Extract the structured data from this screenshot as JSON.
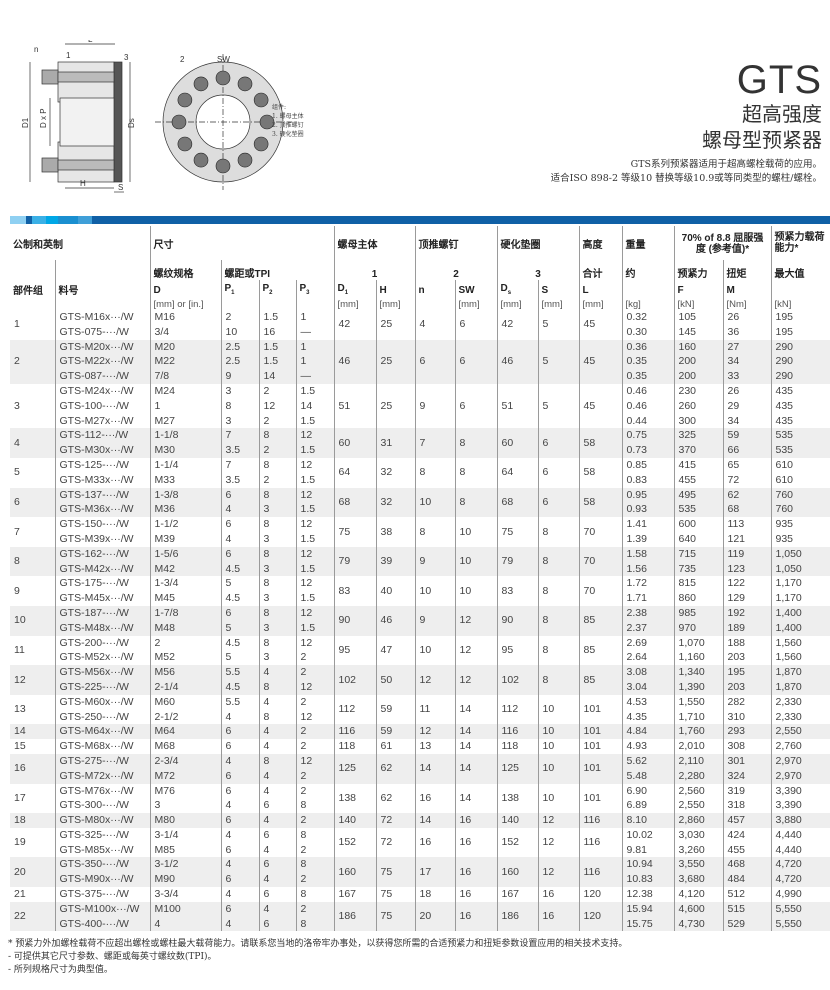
{
  "diagram": {
    "labels": {
      "n": "n",
      "L": "L",
      "part1": "1",
      "part3": "3",
      "D1": "D1",
      "DxP": "D x P",
      "Ds": "Ds",
      "H": "H",
      "S": "S",
      "part2": "2",
      "SW": "SW"
    },
    "legend_title": "组件:",
    "legend_items": [
      "1.  螺母主体",
      "2.  顶推螺钉",
      "3.  硬化垫圈"
    ]
  },
  "title": {
    "product": "GTS",
    "line1": "超高强度",
    "line2": "螺母型预紧器",
    "desc1": "GTS系列预紧器适用于超高螺栓载荷的应用。",
    "desc2": "适合ISO 898-2 等级10 替换等级10.9或等同类型的螺柱/螺栓。"
  },
  "colors": {
    "accent_bar": "#1060a6",
    "bar_segments": [
      "#8fd0f2",
      "#3ab0e6",
      "#00a7e6",
      "#1a8fd0",
      "#3f9fd8"
    ],
    "stripe": "#eeeeee"
  },
  "header": {
    "metric_imperial": "公制和英制",
    "dimensions": "尺寸",
    "nut_body": "螺母主体",
    "jack_bolt": "顶推螺钉",
    "washer": "硬化垫圈",
    "height": "高度",
    "weight": "重量",
    "yield": "70% of 8.8 屈服强度 (参考值)*",
    "load_capacity": "预紧力载荷能力*",
    "thread_spec": "螺纹规格",
    "pitch_tpi": "螺距或TPI",
    "num1": "1",
    "num2": "2",
    "num3": "3",
    "total": "合计",
    "approx": "约",
    "preload": "预紧力",
    "torque": "扭矩",
    "max": "最大值",
    "group": "部件组",
    "part_no": "料号",
    "D": "D",
    "P1": "P",
    "P2": "P",
    "P3": "P",
    "D1": "D",
    "H": "H",
    "n": "n",
    "SW": "SW",
    "Ds": "D",
    "S": "S",
    "L": "L",
    "F": "F",
    "M": "M",
    "P1_sub": "1",
    "P2_sub": "2",
    "P3_sub": "3",
    "D1_sub": "1",
    "Ds_sub": "s",
    "unit_D": "[mm] or [in.]",
    "unit_mm": "[mm]",
    "unit_kg": "[kg]",
    "unit_kN": "[kN]",
    "unit_Nm": "[Nm]"
  },
  "table": {
    "groups": [
      {
        "id": "1",
        "D1": "42",
        "H": "25",
        "n": "4",
        "SW": "6",
        "Ds": "42",
        "S": "5",
        "L": "45",
        "items": [
          {
            "part": "GTS-M16x···/W",
            "D": "M16",
            "P1": "2",
            "P2": "1.5",
            "P3": "1",
            "kg": "0.32",
            "F": "105",
            "M": "26",
            "max": "195"
          },
          {
            "part": "GTS-075-···/W",
            "D": "3/4",
            "P1": "10",
            "P2": "16",
            "P3": "—",
            "kg": "0.30",
            "F": "145",
            "M": "36",
            "max": "195"
          }
        ]
      },
      {
        "id": "2",
        "D1": "46",
        "H": "25",
        "n": "6",
        "SW": "6",
        "Ds": "46",
        "S": "5",
        "L": "45",
        "items": [
          {
            "part": "GTS-M20x···/W",
            "D": "M20",
            "P1": "2.5",
            "P2": "1.5",
            "P3": "1",
            "kg": "0.36",
            "F": "160",
            "M": "27",
            "max": "290"
          },
          {
            "part": "GTS-M22x···/W",
            "D": "M22",
            "P1": "2.5",
            "P2": "1.5",
            "P3": "1",
            "kg": "0.35",
            "F": "200",
            "M": "34",
            "max": "290"
          },
          {
            "part": "GTS-087-···/W",
            "D": "7/8",
            "P1": "9",
            "P2": "14",
            "P3": "—",
            "kg": "0.35",
            "F": "200",
            "M": "33",
            "max": "290"
          }
        ]
      },
      {
        "id": "3",
        "D1": "51",
        "H": "25",
        "n": "9",
        "SW": "6",
        "Ds": "51",
        "S": "5",
        "L": "45",
        "items": [
          {
            "part": "GTS-M24x···/W",
            "D": "M24",
            "P1": "3",
            "P2": "2",
            "P3": "1.5",
            "kg": "0.46",
            "F": "230",
            "M": "26",
            "max": "435"
          },
          {
            "part": "GTS-100-···/W",
            "D": "1",
            "P1": "8",
            "P2": "12",
            "P3": "14",
            "kg": "0.46",
            "F": "260",
            "M": "29",
            "max": "435"
          },
          {
            "part": "GTS-M27x···/W",
            "D": "M27",
            "P1": "3",
            "P2": "2",
            "P3": "1.5",
            "kg": "0.44",
            "F": "300",
            "M": "34",
            "max": "435"
          }
        ]
      },
      {
        "id": "4",
        "D1": "60",
        "H": "31",
        "n": "7",
        "SW": "8",
        "Ds": "60",
        "S": "6",
        "L": "58",
        "items": [
          {
            "part": "GTS-112-···/W",
            "D": "1-1/8",
            "P1": "7",
            "P2": "8",
            "P3": "12",
            "kg": "0.75",
            "F": "325",
            "M": "59",
            "max": "535"
          },
          {
            "part": "GTS-M30x···/W",
            "D": "M30",
            "P1": "3.5",
            "P2": "2",
            "P3": "1.5",
            "kg": "0.73",
            "F": "370",
            "M": "66",
            "max": "535"
          }
        ]
      },
      {
        "id": "5",
        "D1": "64",
        "H": "32",
        "n": "8",
        "SW": "8",
        "Ds": "64",
        "S": "6",
        "L": "58",
        "items": [
          {
            "part": "GTS-125-···/W",
            "D": "1-1/4",
            "P1": "7",
            "P2": "8",
            "P3": "12",
            "kg": "0.85",
            "F": "415",
            "M": "65",
            "max": "610"
          },
          {
            "part": "GTS-M33x···/W",
            "D": "M33",
            "P1": "3.5",
            "P2": "2",
            "P3": "1.5",
            "kg": "0.83",
            "F": "455",
            "M": "72",
            "max": "610"
          }
        ]
      },
      {
        "id": "6",
        "D1": "68",
        "H": "32",
        "n": "10",
        "SW": "8",
        "Ds": "68",
        "S": "6",
        "L": "58",
        "items": [
          {
            "part": "GTS-137-···/W",
            "D": "1-3/8",
            "P1": "6",
            "P2": "8",
            "P3": "12",
            "kg": "0.95",
            "F": "495",
            "M": "62",
            "max": "760"
          },
          {
            "part": "GTS-M36x···/W",
            "D": "M36",
            "P1": "4",
            "P2": "3",
            "P3": "1.5",
            "kg": "0.93",
            "F": "535",
            "M": "68",
            "max": "760"
          }
        ]
      },
      {
        "id": "7",
        "D1": "75",
        "H": "38",
        "n": "8",
        "SW": "10",
        "Ds": "75",
        "S": "8",
        "L": "70",
        "items": [
          {
            "part": "GTS-150-···/W",
            "D": "1-1/2",
            "P1": "6",
            "P2": "8",
            "P3": "12",
            "kg": "1.41",
            "F": "600",
            "M": "113",
            "max": "935"
          },
          {
            "part": "GTS-M39x···/W",
            "D": "M39",
            "P1": "4",
            "P2": "3",
            "P3": "1.5",
            "kg": "1.39",
            "F": "640",
            "M": "121",
            "max": "935"
          }
        ]
      },
      {
        "id": "8",
        "D1": "79",
        "H": "39",
        "n": "9",
        "SW": "10",
        "Ds": "79",
        "S": "8",
        "L": "70",
        "items": [
          {
            "part": "GTS-162-···/W",
            "D": "1-5/6",
            "P1": "6",
            "P2": "8",
            "P3": "12",
            "kg": "1.58",
            "F": "715",
            "M": "119",
            "max": "1,050"
          },
          {
            "part": "GTS-M42x···/W",
            "D": "M42",
            "P1": "4.5",
            "P2": "3",
            "P3": "1.5",
            "kg": "1.56",
            "F": "735",
            "M": "123",
            "max": "1,050"
          }
        ]
      },
      {
        "id": "9",
        "D1": "83",
        "H": "40",
        "n": "10",
        "SW": "10",
        "Ds": "83",
        "S": "8",
        "L": "70",
        "items": [
          {
            "part": "GTS-175-···/W",
            "D": "1-3/4",
            "P1": "5",
            "P2": "8",
            "P3": "12",
            "kg": "1.72",
            "F": "815",
            "M": "122",
            "max": "1,170"
          },
          {
            "part": "GTS-M45x···/W",
            "D": "M45",
            "P1": "4.5",
            "P2": "3",
            "P3": "1.5",
            "kg": "1.71",
            "F": "860",
            "M": "129",
            "max": "1,170"
          }
        ]
      },
      {
        "id": "10",
        "D1": "90",
        "H": "46",
        "n": "9",
        "SW": "12",
        "Ds": "90",
        "S": "8",
        "L": "85",
        "items": [
          {
            "part": "GTS-187-···/W",
            "D": "1-7/8",
            "P1": "6",
            "P2": "8",
            "P3": "12",
            "kg": "2.38",
            "F": "985",
            "M": "192",
            "max": "1,400"
          },
          {
            "part": "GTS-M48x···/W",
            "D": "M48",
            "P1": "5",
            "P2": "3",
            "P3": "1.5",
            "kg": "2.37",
            "F": "970",
            "M": "189",
            "max": "1,400"
          }
        ]
      },
      {
        "id": "11",
        "D1": "95",
        "H": "47",
        "n": "10",
        "SW": "12",
        "Ds": "95",
        "S": "8",
        "L": "85",
        "items": [
          {
            "part": "GTS-200-···/W",
            "D": "2",
            "P1": "4.5",
            "P2": "8",
            "P3": "12",
            "kg": "2.69",
            "F": "1,070",
            "M": "188",
            "max": "1,560"
          },
          {
            "part": "GTS-M52x···/W",
            "D": "M52",
            "P1": "5",
            "P2": "3",
            "P3": "2",
            "kg": "2.64",
            "F": "1,160",
            "M": "203",
            "max": "1,560"
          }
        ]
      },
      {
        "id": "12",
        "D1": "102",
        "H": "50",
        "n": "12",
        "SW": "12",
        "Ds": "102",
        "S": "8",
        "L": "85",
        "items": [
          {
            "part": "GTS-M56x···/W",
            "D": "M56",
            "P1": "5.5",
            "P2": "4",
            "P3": "2",
            "kg": "3.08",
            "F": "1,340",
            "M": "195",
            "max": "1,870"
          },
          {
            "part": "GTS-225-···/W",
            "D": "2-1/4",
            "P1": "4.5",
            "P2": "8",
            "P3": "12",
            "kg": "3.04",
            "F": "1,390",
            "M": "203",
            "max": "1,870"
          }
        ]
      },
      {
        "id": "13",
        "D1": "112",
        "H": "59",
        "n": "11",
        "SW": "14",
        "Ds": "112",
        "S": "10",
        "L": "101",
        "items": [
          {
            "part": "GTS-M60x···/W",
            "D": "M60",
            "P1": "5.5",
            "P2": "4",
            "P3": "2",
            "kg": "4.53",
            "F": "1,550",
            "M": "282",
            "max": "2,330"
          },
          {
            "part": "GTS-250-···/W",
            "D": "2-1/2",
            "P1": "4",
            "P2": "8",
            "P3": "12",
            "kg": "4.35",
            "F": "1,710",
            "M": "310",
            "max": "2,330"
          }
        ]
      },
      {
        "id": "14",
        "D1": "116",
        "H": "59",
        "n": "12",
        "SW": "14",
        "Ds": "116",
        "S": "10",
        "L": "101",
        "items": [
          {
            "part": "GTS-M64x···/W",
            "D": "M64",
            "P1": "6",
            "P2": "4",
            "P3": "2",
            "kg": "4.84",
            "F": "1,760",
            "M": "293",
            "max": "2,550"
          }
        ]
      },
      {
        "id": "15",
        "D1": "118",
        "H": "61",
        "n": "13",
        "SW": "14",
        "Ds": "118",
        "S": "10",
        "L": "101",
        "items": [
          {
            "part": "GTS-M68x···/W",
            "D": "M68",
            "P1": "6",
            "P2": "4",
            "P3": "2",
            "kg": "4.93",
            "F": "2,010",
            "M": "308",
            "max": "2,760"
          }
        ]
      },
      {
        "id": "16",
        "D1": "125",
        "H": "62",
        "n": "14",
        "SW": "14",
        "Ds": "125",
        "S": "10",
        "L": "101",
        "items": [
          {
            "part": "GTS-275-···/W",
            "D": "2-3/4",
            "P1": "4",
            "P2": "8",
            "P3": "12",
            "kg": "5.62",
            "F": "2,110",
            "M": "301",
            "max": "2,970"
          },
          {
            "part": "GTS-M72x···/W",
            "D": "M72",
            "P1": "6",
            "P2": "4",
            "P3": "2",
            "kg": "5.48",
            "F": "2,280",
            "M": "324",
            "max": "2,970"
          }
        ]
      },
      {
        "id": "17",
        "D1": "138",
        "H": "62",
        "n": "16",
        "SW": "14",
        "Ds": "138",
        "S": "10",
        "L": "101",
        "items": [
          {
            "part": "GTS-M76x···/W",
            "D": "M76",
            "P1": "6",
            "P2": "4",
            "P3": "2",
            "kg": "6.90",
            "F": "2,560",
            "M": "319",
            "max": "3,390"
          },
          {
            "part": "GTS-300-···/W",
            "D": "3",
            "P1": "4",
            "P2": "6",
            "P3": "8",
            "kg": "6.89",
            "F": "2,550",
            "M": "318",
            "max": "3,390"
          }
        ]
      },
      {
        "id": "18",
        "D1": "140",
        "H": "72",
        "n": "14",
        "SW": "16",
        "Ds": "140",
        "S": "12",
        "L": "116",
        "items": [
          {
            "part": "GTS-M80x···/W",
            "D": "M80",
            "P1": "6",
            "P2": "4",
            "P3": "2",
            "kg": "8.10",
            "F": "2,860",
            "M": "457",
            "max": "3,880"
          }
        ]
      },
      {
        "id": "19",
        "D1": "152",
        "H": "72",
        "n": "16",
        "SW": "16",
        "Ds": "152",
        "S": "12",
        "L": "116",
        "items": [
          {
            "part": "GTS-325-···/W",
            "D": "3-1/4",
            "P1": "4",
            "P2": "6",
            "P3": "8",
            "kg": "10.02",
            "F": "3,030",
            "M": "424",
            "max": "4,440"
          },
          {
            "part": "GTS-M85x···/W",
            "D": "M85",
            "P1": "6",
            "P2": "4",
            "P3": "2",
            "kg": "9.81",
            "F": "3,260",
            "M": "455",
            "max": "4,440"
          }
        ]
      },
      {
        "id": "20",
        "D1": "160",
        "H": "75",
        "n": "17",
        "SW": "16",
        "Ds": "160",
        "S": "12",
        "L": "116",
        "items": [
          {
            "part": "GTS-350-···/W",
            "D": "3-1/2",
            "P1": "4",
            "P2": "6",
            "P3": "8",
            "kg": "10.94",
            "F": "3,550",
            "M": "468",
            "max": "4,720"
          },
          {
            "part": "GTS-M90x···/W",
            "D": "M90",
            "P1": "6",
            "P2": "4",
            "P3": "2",
            "kg": "10.83",
            "F": "3,680",
            "M": "484",
            "max": "4,720"
          }
        ]
      },
      {
        "id": "21",
        "D1": "167",
        "H": "75",
        "n": "18",
        "SW": "16",
        "Ds": "167",
        "S": "16",
        "L": "120",
        "items": [
          {
            "part": "GTS-375-···/W",
            "D": "3-3/4",
            "P1": "4",
            "P2": "6",
            "P3": "8",
            "kg": "12.38",
            "F": "4,120",
            "M": "512",
            "max": "4,990"
          }
        ]
      },
      {
        "id": "22",
        "D1": "186",
        "H": "75",
        "n": "20",
        "SW": "16",
        "Ds": "186",
        "S": "16",
        "L": "120",
        "items": [
          {
            "part": "GTS-M100x···/W",
            "D": "M100",
            "P1": "6",
            "P2": "4",
            "P3": "2",
            "kg": "15.94",
            "F": "4,600",
            "M": "515",
            "max": "5,550"
          },
          {
            "part": "GTS-400-···/W",
            "D": "4",
            "P1": "4",
            "P2": "6",
            "P3": "8",
            "kg": "15.75",
            "F": "4,730",
            "M": "529",
            "max": "5,550"
          }
        ]
      }
    ]
  },
  "notes": [
    "* 预紧力外加螺栓载荷不应超出螺栓或螺柱最大载荷能力。请联系您当地的洛帝牢办事处，以获得您所需的合适预紧力和扭矩参数设置应用的相关技术支持。",
    "- 可提供其它尺寸参数、螺距或每英寸螺纹数(TPI)。",
    "- 所列规格尺寸为典型值。"
  ]
}
